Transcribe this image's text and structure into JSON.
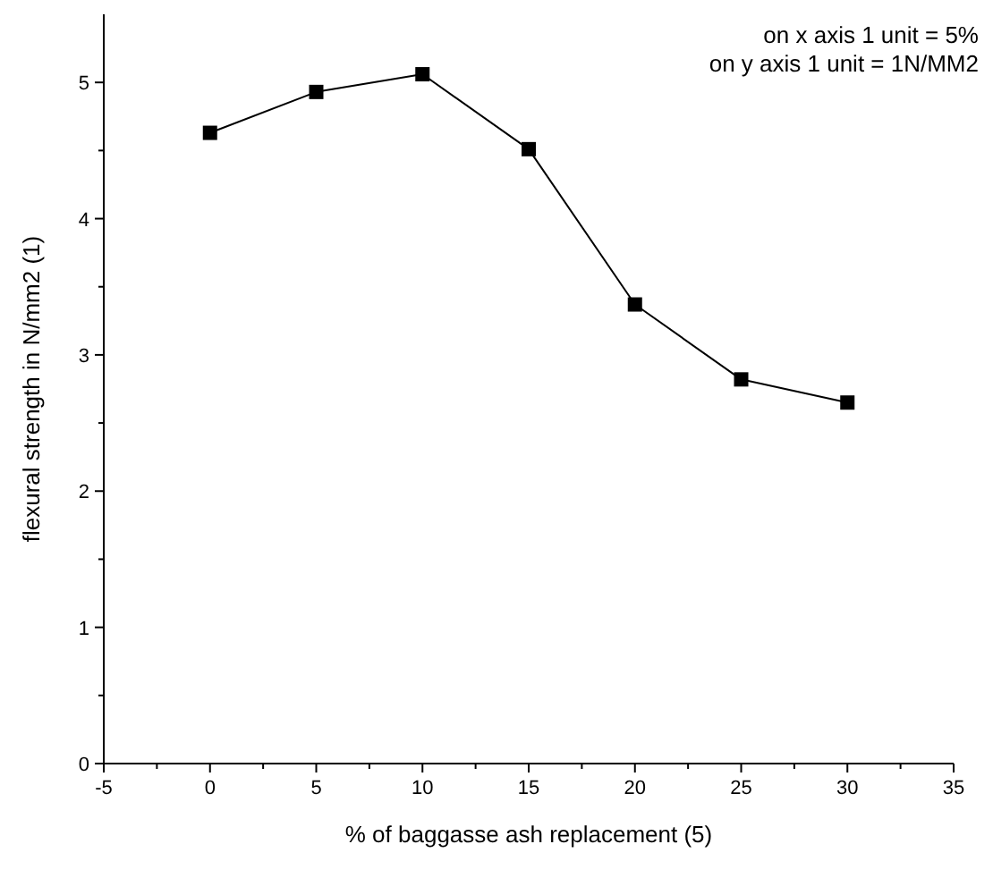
{
  "chart_data": {
    "type": "line",
    "xlabel": "% of baggasse ash replacement (5)",
    "ylabel": "flexural strength in N/mm2 (1)",
    "x": [
      0,
      5,
      10,
      15,
      20,
      25,
      30
    ],
    "series": [
      {
        "color": "#000000",
        "values": [
          4.63,
          4.93,
          5.06,
          4.51,
          3.37,
          2.82,
          2.65
        ]
      }
    ],
    "marker": "square",
    "line_style": "solid",
    "grid": false,
    "xlim": [
      -5,
      35
    ],
    "xticks": [
      -5,
      {
        "value": -2.5,
        "label": null
      },
      0,
      {
        "value": 2.5,
        "label": null
      },
      5,
      {
        "value": 7.5,
        "label": null
      },
      10,
      {
        "value": 12.5,
        "label": null
      },
      15,
      {
        "value": 17.5,
        "label": null
      },
      20,
      {
        "value": 22.5,
        "label": null
      },
      25,
      {
        "value": 27.5,
        "label": null
      },
      30,
      {
        "value": 32.5,
        "label": null
      },
      35
    ],
    "ylim": [
      0,
      5.5
    ],
    "yticks": [
      0,
      {
        "value": 0.5,
        "label": null
      },
      1,
      {
        "value": 1.5,
        "label": null
      },
      2,
      {
        "value": 2.5,
        "label": null
      },
      3,
      {
        "value": 3.5,
        "label": null
      },
      4,
      {
        "value": 4.5,
        "label": null
      },
      5
    ],
    "annotations": [
      "on x axis 1 unit = 5%",
      "on y axis 1 unit = 1N/MM2"
    ]
  }
}
